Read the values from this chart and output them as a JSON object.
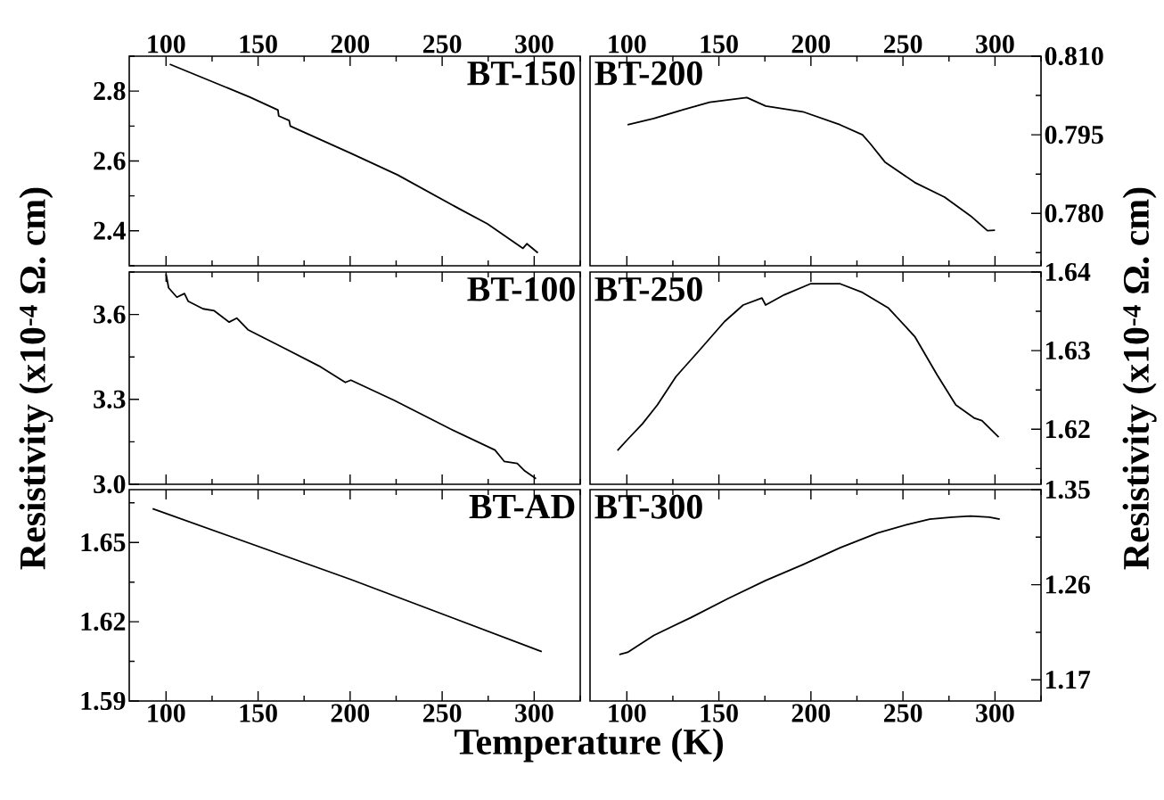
{
  "chart_data": [
    {
      "type": "line",
      "title": "BT-150",
      "xlim": [
        80,
        325
      ],
      "xticks": [
        100,
        150,
        200,
        250,
        300
      ],
      "ylim": [
        2.3,
        2.9
      ],
      "yticks": [
        2.4,
        2.6,
        2.8
      ],
      "color": "#000000",
      "x": [
        102,
        145.5,
        160.8,
        161.2,
        166.9,
        167.5,
        200.4,
        225.8,
        259.3,
        274.6,
        293.9,
        296,
        302
      ],
      "values": [
        2.877,
        2.783,
        2.746,
        2.729,
        2.716,
        2.7,
        2.622,
        2.56,
        2.463,
        2.42,
        2.35,
        2.363,
        2.337
      ]
    },
    {
      "type": "line",
      "title": "BT-200",
      "xlim": [
        80,
        325
      ],
      "xticks": [
        100,
        150,
        200,
        250,
        300
      ],
      "ylim": [
        0.77,
        0.81
      ],
      "yticks": [
        {
          "value": 0.78,
          "label": "0.780"
        },
        0.795,
        {
          "value": 0.81,
          "label": "0.810"
        }
      ],
      "color": "#000000",
      "x": [
        100.4,
        114.6,
        130.8,
        145,
        165.2,
        175.4,
        195.6,
        215.9,
        228,
        232,
        240.2,
        256.4,
        272.6,
        286.8,
        295.9,
        300
      ],
      "values": [
        0.7969,
        0.7981,
        0.7998,
        0.8012,
        0.8021,
        0.8005,
        0.7994,
        0.7969,
        0.795,
        0.7934,
        0.7898,
        0.7859,
        0.7831,
        0.7795,
        0.7767,
        0.7768
      ]
    },
    {
      "type": "line",
      "title": "BT-100",
      "ylabel": "Resistivity (x10$^{-4}$ Ω. cm)",
      "xlim": [
        80,
        325
      ],
      "xticks": [
        100,
        150,
        200,
        250,
        300
      ],
      "ylim": [
        3.0,
        3.75
      ],
      "yticks": [
        {
          "value": 3.0,
          "label": "3.0"
        },
        3.3,
        3.6
      ],
      "tick_labels": "y",
      "color": "#000000",
      "x": [
        100,
        101.4,
        105.9,
        110,
        112,
        120.1,
        126.2,
        134.3,
        138.4,
        144.5,
        152.6,
        164.8,
        183.1,
        197.4,
        200.4,
        223.8,
        254.3,
        278.7,
        283.7,
        290.8,
        294.9,
        301
      ],
      "values": [
        3.742,
        3.694,
        3.661,
        3.674,
        3.647,
        3.62,
        3.613,
        3.573,
        3.587,
        3.546,
        3.519,
        3.479,
        3.418,
        3.36,
        3.368,
        3.297,
        3.196,
        3.121,
        3.081,
        3.074,
        3.047,
        3.02
      ]
    },
    {
      "type": "line",
      "title": "BT-250",
      "ylabel": "Resistivity (x10$^{-4}$ Ω. cm)",
      "xlim": [
        80,
        325
      ],
      "xticks": [
        100,
        150,
        200,
        250,
        300
      ],
      "ylim": [
        1.613,
        1.64
      ],
      "yticks": [
        1.62,
        1.63,
        1.64
      ],
      "tick_labels": "y",
      "color": "#000000",
      "x": [
        94.9,
        100.4,
        108.5,
        116.6,
        126.7,
        138.9,
        153.1,
        163.2,
        173.4,
        175.4,
        185.5,
        199.7,
        215.9,
        228,
        242.2,
        256.4,
        268.6,
        278.7,
        288.9,
        292.9,
        302
      ],
      "values": [
        1.6173,
        1.6187,
        1.6207,
        1.6231,
        1.6267,
        1.6299,
        1.6337,
        1.6358,
        1.6367,
        1.6358,
        1.6371,
        1.6385,
        1.6385,
        1.6374,
        1.6354,
        1.6318,
        1.6269,
        1.6231,
        1.6214,
        1.6211,
        1.619
      ]
    },
    {
      "type": "line",
      "title": "BT-AD",
      "xlabel": "Temperature (K)",
      "xlim": [
        80,
        325
      ],
      "xticks": [
        100,
        150,
        200,
        250,
        300
      ],
      "ylim": [
        1.59,
        1.67
      ],
      "yticks": [
        1.59,
        1.62,
        1.65
      ],
      "color": "#000000",
      "x": [
        92.7,
        200.4,
        304.1
      ],
      "values": [
        1.6628,
        1.636,
        1.6087
      ]
    },
    {
      "type": "line",
      "title": "BT-300",
      "xlim": [
        80,
        325
      ],
      "xticks": [
        100,
        150,
        200,
        250,
        300
      ],
      "ylim": [
        1.15,
        1.35
      ],
      "yticks": [
        1.17,
        1.26,
        1.35
      ],
      "color": "#000000",
      "x": [
        95.9,
        100.4,
        114.6,
        134.9,
        155.1,
        175.4,
        195.6,
        215.9,
        236.2,
        252.4,
        264.5,
        276.7,
        286.8,
        296.9,
        302.6
      ],
      "values": [
        1.194,
        1.196,
        1.212,
        1.229,
        1.247,
        1.264,
        1.279,
        1.295,
        1.309,
        1.317,
        1.322,
        1.324,
        1.325,
        1.324,
        1.322
      ]
    }
  ]
}
